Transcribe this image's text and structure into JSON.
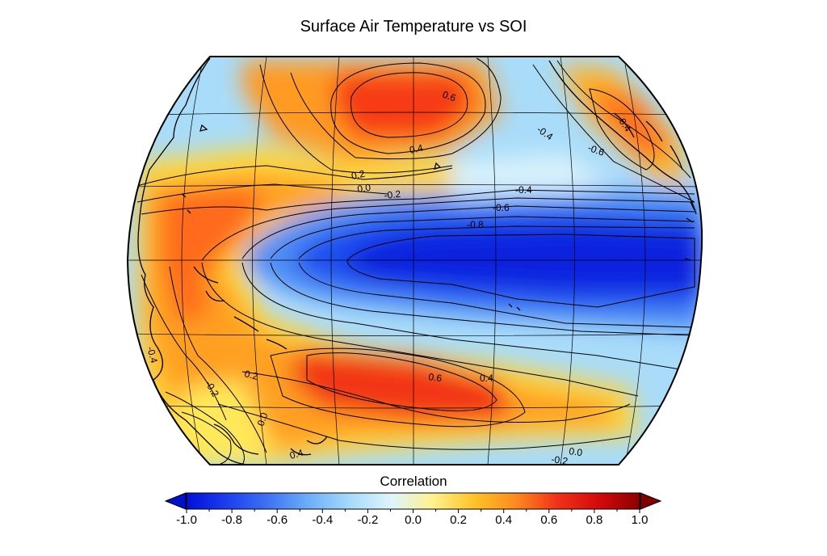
{
  "title": "Surface Air Temperature vs SOI",
  "colorbar": {
    "label": "Correlation",
    "ticks": [
      "-1.0",
      "-0.8",
      "-0.6",
      "-0.4",
      "-0.2",
      "0.0",
      "0.2",
      "0.4",
      "0.6",
      "0.8",
      "1.0"
    ],
    "colors": [
      "#0011d8",
      "#1d3fee",
      "#3f74f4",
      "#6fb0f8",
      "#a8dcfb",
      "#dff5fa",
      "#fff18a",
      "#ffc227",
      "#ff8a1e",
      "#f03218",
      "#d40a0a",
      "#8b0000"
    ],
    "under_color": "#0011cc",
    "over_color": "#800000"
  },
  "contour_labels": [
    {
      "text": "0.6"
    },
    {
      "text": "0.4"
    },
    {
      "text": "0.2"
    },
    {
      "text": "0.0"
    },
    {
      "text": "-0.2"
    },
    {
      "text": "-0.4"
    },
    {
      "text": "-0.6"
    },
    {
      "text": "-0.8"
    },
    {
      "text": "-0.4"
    },
    {
      "text": "-0.6"
    },
    {
      "text": "0.6"
    },
    {
      "text": "0.4"
    },
    {
      "text": "0.2"
    },
    {
      "text": "0.0"
    },
    {
      "text": "-0.2"
    },
    {
      "text": "0.0"
    },
    {
      "text": "-0.2"
    },
    {
      "text": "0.4"
    },
    {
      "text": "-0.4"
    },
    {
      "text": "0.4"
    }
  ]
}
